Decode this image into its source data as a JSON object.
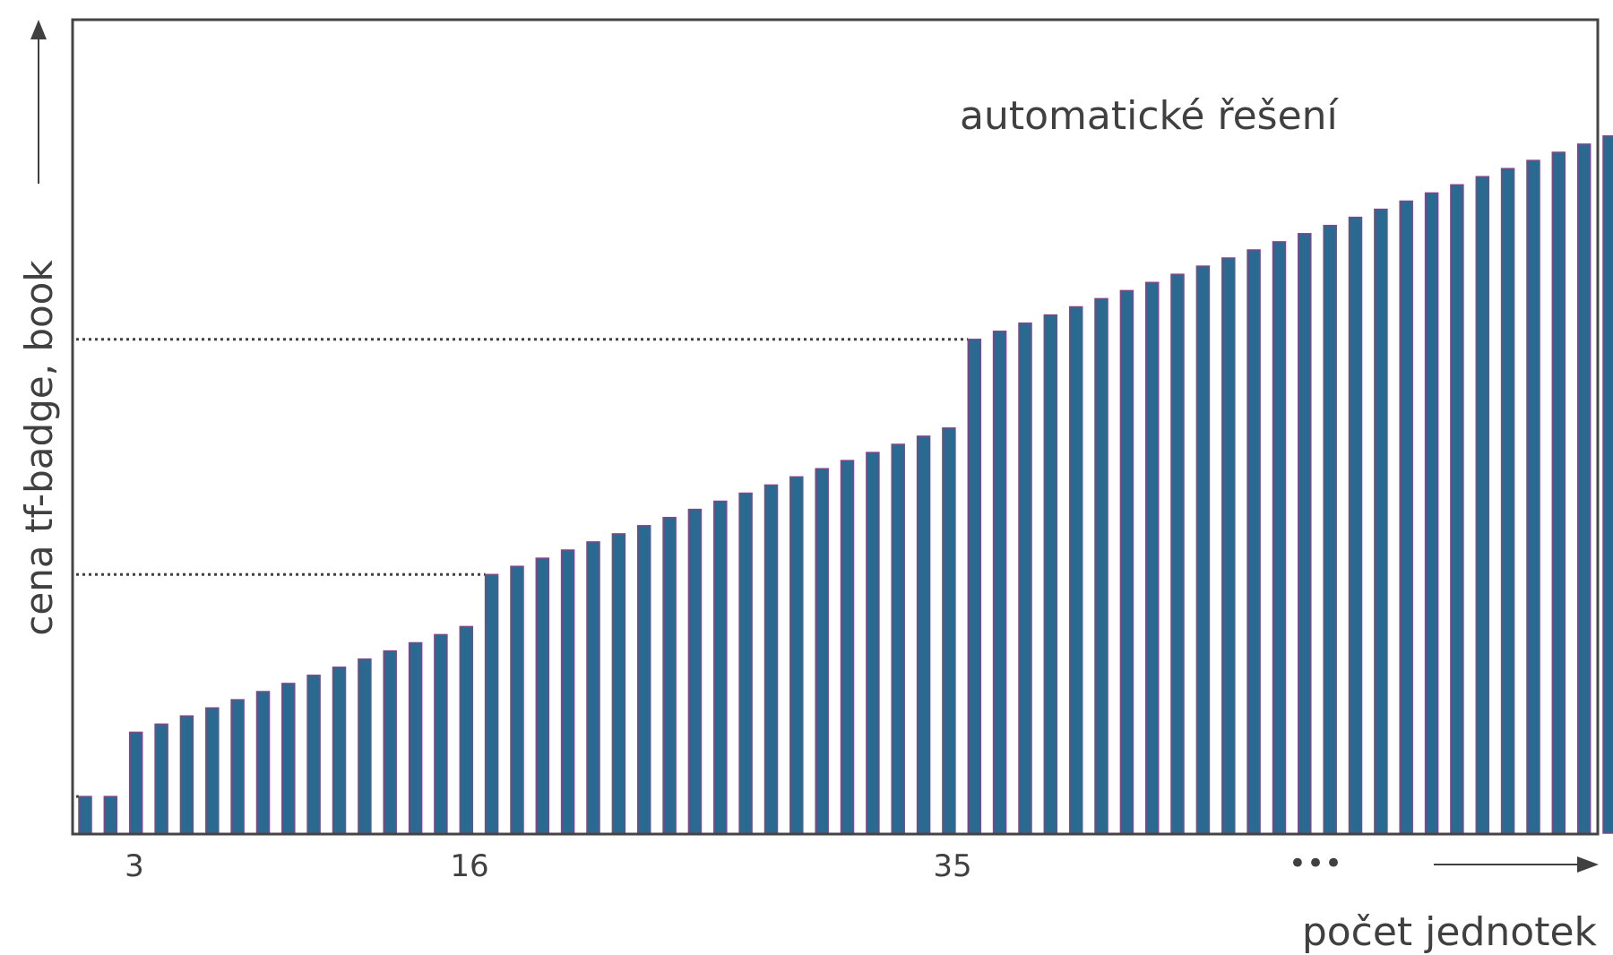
{
  "chart_data": {
    "type": "bar",
    "annotation": "automatické řešení",
    "ylabel": "cena tf-badge, book",
    "xlabel": "počet jednotek",
    "x_tick_labels": [
      "3",
      "16",
      "35"
    ],
    "ellipsis": "•••",
    "step_levels": [
      4.5,
      31.8,
      60.7
    ],
    "bar_color": "#2a6a90",
    "bar_outline": "#7a4a8a",
    "values": [
      4.5,
      4.5,
      12.4,
      13.4,
      14.4,
      15.4,
      16.4,
      17.4,
      18.4,
      19.4,
      20.4,
      21.4,
      22.4,
      23.4,
      24.4,
      25.4,
      31.8,
      32.8,
      33.8,
      34.8,
      35.8,
      36.8,
      37.8,
      38.8,
      39.8,
      40.8,
      41.8,
      42.8,
      43.8,
      44.8,
      45.8,
      46.8,
      47.8,
      48.8,
      49.8,
      60.7,
      61.7,
      62.7,
      63.7,
      64.7,
      65.7,
      66.7,
      67.7,
      68.7,
      69.7,
      70.7,
      71.7,
      72.7,
      73.7,
      74.7,
      75.7,
      76.7,
      77.7,
      78.7,
      79.7,
      80.7,
      81.7,
      82.7,
      83.7,
      84.7,
      85.7
    ],
    "ylim": [
      0,
      100
    ],
    "grid": false
  }
}
